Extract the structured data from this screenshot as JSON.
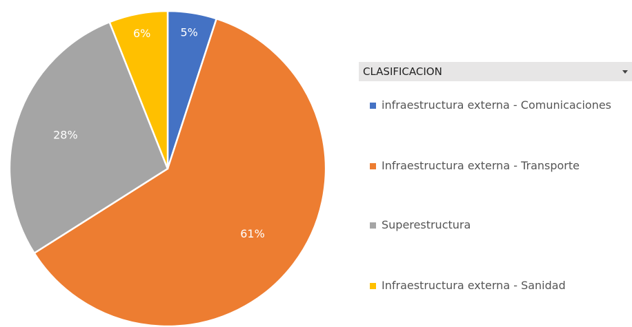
{
  "chart_data": {
    "type": "pie",
    "legend_title": "CLASIFICACION",
    "categories": [
      "infraestructura externa - Comunicaciones",
      "Infraestructura externa - Transporte",
      "Superestructura",
      "Infraestructura externa - Sanidad"
    ],
    "values": [
      5,
      61,
      28,
      6
    ],
    "value_labels": [
      "5%",
      "61%",
      "28%",
      "6%"
    ],
    "colors": [
      "#4472c4",
      "#ed7d31",
      "#a5a5a5",
      "#ffc000"
    ],
    "legend": "right"
  }
}
